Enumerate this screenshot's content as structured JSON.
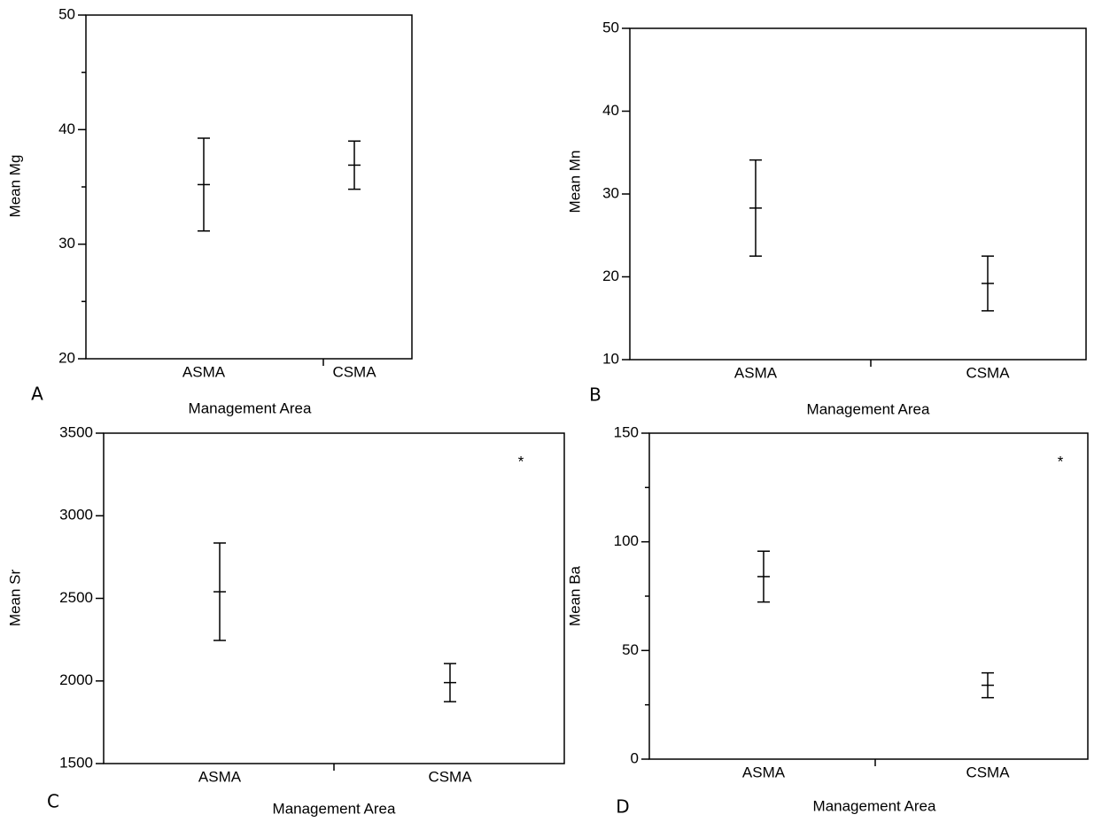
{
  "chart_data": [
    {
      "type": "errorbar",
      "panel": "A",
      "xlabel": "Management Area",
      "ylabel": "Mean Mg",
      "categories": [
        "ASMA",
        "CSMA"
      ],
      "values": [
        35.2,
        36.9
      ],
      "errors": [
        4.05,
        2.1
      ],
      "color": "#000000",
      "ylim": [
        20,
        50
      ],
      "yticks": [
        20,
        30,
        40,
        50
      ],
      "yminorticks": [
        25,
        35,
        45
      ]
    },
    {
      "type": "errorbar",
      "panel": "B",
      "xlabel": "Management Area",
      "ylabel": "Mean Mn",
      "categories": [
        "ASMA",
        "CSMA"
      ],
      "values": [
        28.3,
        19.2
      ],
      "errors": [
        5.8,
        3.3
      ],
      "color": "#000000",
      "ylim": [
        10,
        50
      ],
      "yticks": [
        10,
        20,
        30,
        40,
        50
      ]
    },
    {
      "type": "errorbar",
      "panel": "C",
      "xlabel": "Management Area",
      "ylabel": "Mean Sr",
      "categories": [
        "ASMA",
        "CSMA"
      ],
      "values": [
        2540,
        1990
      ],
      "errors": [
        295,
        115
      ],
      "color": "#000000",
      "ylim": [
        1500,
        3500
      ],
      "yticks": [
        1500,
        2000,
        2500,
        3000,
        3500
      ],
      "annotation": "*"
    },
    {
      "type": "errorbar",
      "panel": "D",
      "xlabel": "Management Area",
      "ylabel": "Mean Ba",
      "categories": [
        "ASMA",
        "CSMA"
      ],
      "values": [
        84,
        34
      ],
      "errors": [
        11.7,
        5.7
      ],
      "color": "#000000",
      "ylim": [
        0,
        150
      ],
      "yticks": [
        0,
        50,
        100,
        150
      ],
      "yminorticks": [
        25,
        75,
        125
      ],
      "annotation": "*"
    }
  ]
}
